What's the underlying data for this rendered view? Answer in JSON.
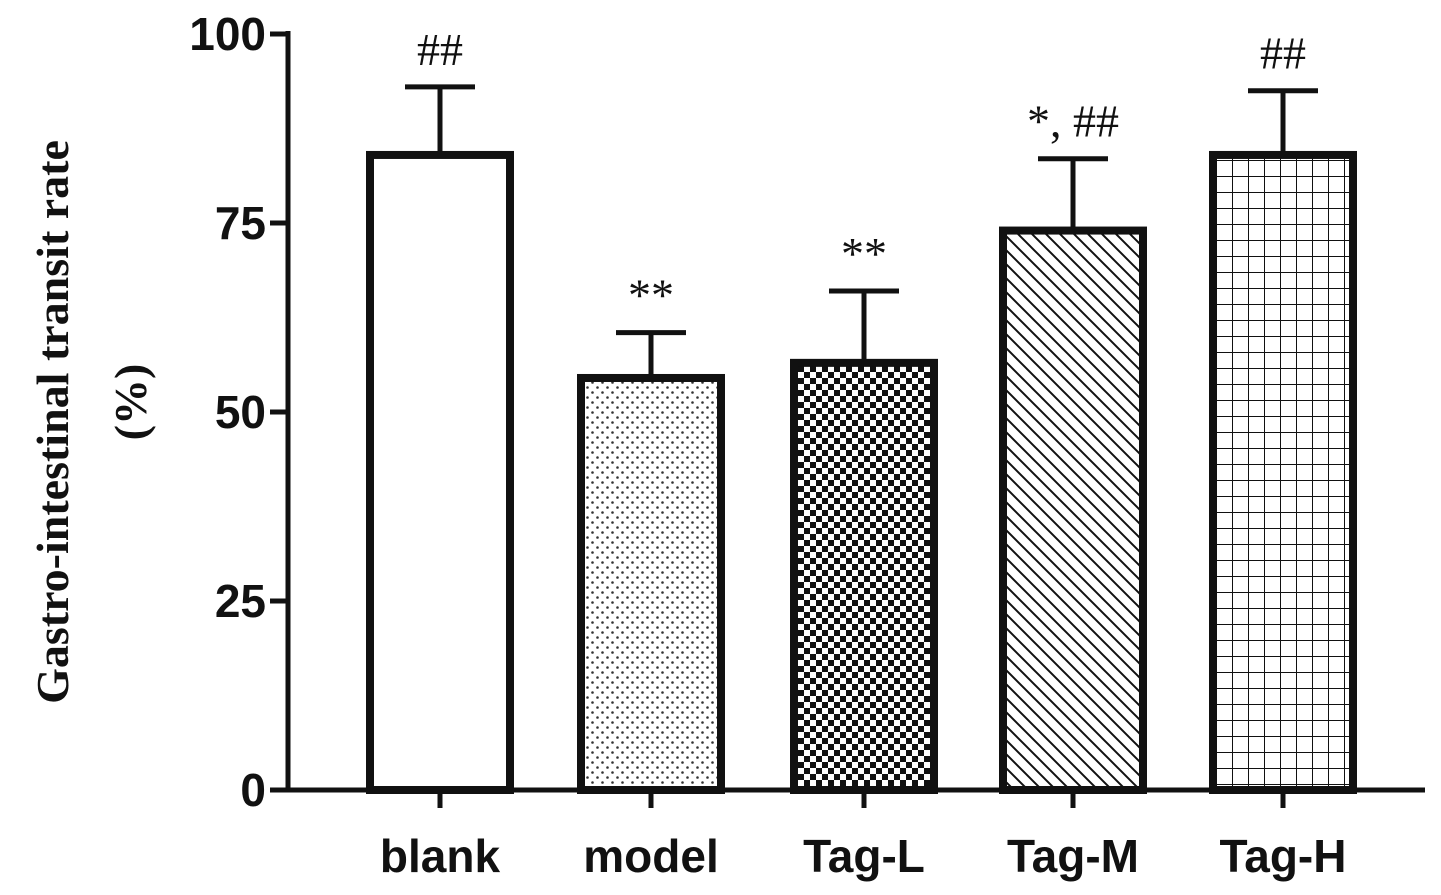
{
  "chart_data": {
    "type": "bar",
    "ylabel_line1": "Gastro-intestinal transit rate",
    "ylabel_line2": "(%)",
    "ylim": [
      0,
      100
    ],
    "yticks": [
      0,
      25,
      50,
      75,
      100
    ],
    "grid": false,
    "categories": [
      "blank",
      "model",
      "Tag-L",
      "Tag-M",
      "Tag-H"
    ],
    "values": [
      84,
      54.5,
      56.5,
      74,
      84
    ],
    "errors": [
      9,
      6,
      9.5,
      9.5,
      8.5
    ],
    "annotations": [
      "##",
      "**",
      "**",
      "*, ##",
      "##"
    ],
    "patterns": [
      "none",
      "dots",
      "checker",
      "diagonal",
      "grid"
    ]
  }
}
